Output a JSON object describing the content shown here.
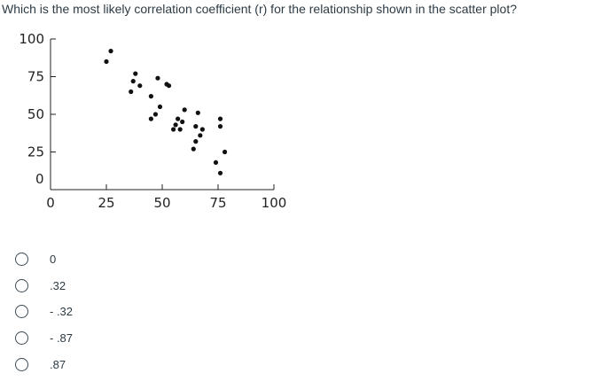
{
  "question": "Which is the most likely correlation coefficient (r) for the relationship shown in the scatter plot?",
  "chart_data": {
    "type": "scatter",
    "xlim": [
      0,
      100
    ],
    "ylim": [
      0,
      100
    ],
    "x_ticks": [
      "0",
      "25",
      "50",
      "75",
      "100"
    ],
    "y_ticks": [
      "100",
      "75",
      "50",
      "25",
      "0"
    ],
    "grid": false,
    "points": [
      {
        "x": 27,
        "y": 92
      },
      {
        "x": 25,
        "y": 85
      },
      {
        "x": 38,
        "y": 77
      },
      {
        "x": 37,
        "y": 72
      },
      {
        "x": 40,
        "y": 69
      },
      {
        "x": 36,
        "y": 65
      },
      {
        "x": 48,
        "y": 74
      },
      {
        "x": 52,
        "y": 70
      },
      {
        "x": 53,
        "y": 69
      },
      {
        "x": 45,
        "y": 62
      },
      {
        "x": 49,
        "y": 55
      },
      {
        "x": 47,
        "y": 50
      },
      {
        "x": 45,
        "y": 47
      },
      {
        "x": 60,
        "y": 53
      },
      {
        "x": 57,
        "y": 47
      },
      {
        "x": 59,
        "y": 45
      },
      {
        "x": 56,
        "y": 43
      },
      {
        "x": 58,
        "y": 40
      },
      {
        "x": 55,
        "y": 40
      },
      {
        "x": 66,
        "y": 51
      },
      {
        "x": 65,
        "y": 42
      },
      {
        "x": 68,
        "y": 40
      },
      {
        "x": 67,
        "y": 36
      },
      {
        "x": 65,
        "y": 32
      },
      {
        "x": 64,
        "y": 27
      },
      {
        "x": 76,
        "y": 47
      },
      {
        "x": 76,
        "y": 42
      },
      {
        "x": 78,
        "y": 25
      },
      {
        "x": 74,
        "y": 18
      },
      {
        "x": 76,
        "y": 11
      }
    ]
  },
  "options": [
    {
      "label": "0"
    },
    {
      "label": ".32"
    },
    {
      "label": "- .32"
    },
    {
      "label": "- .87"
    },
    {
      "label": ".87"
    }
  ]
}
